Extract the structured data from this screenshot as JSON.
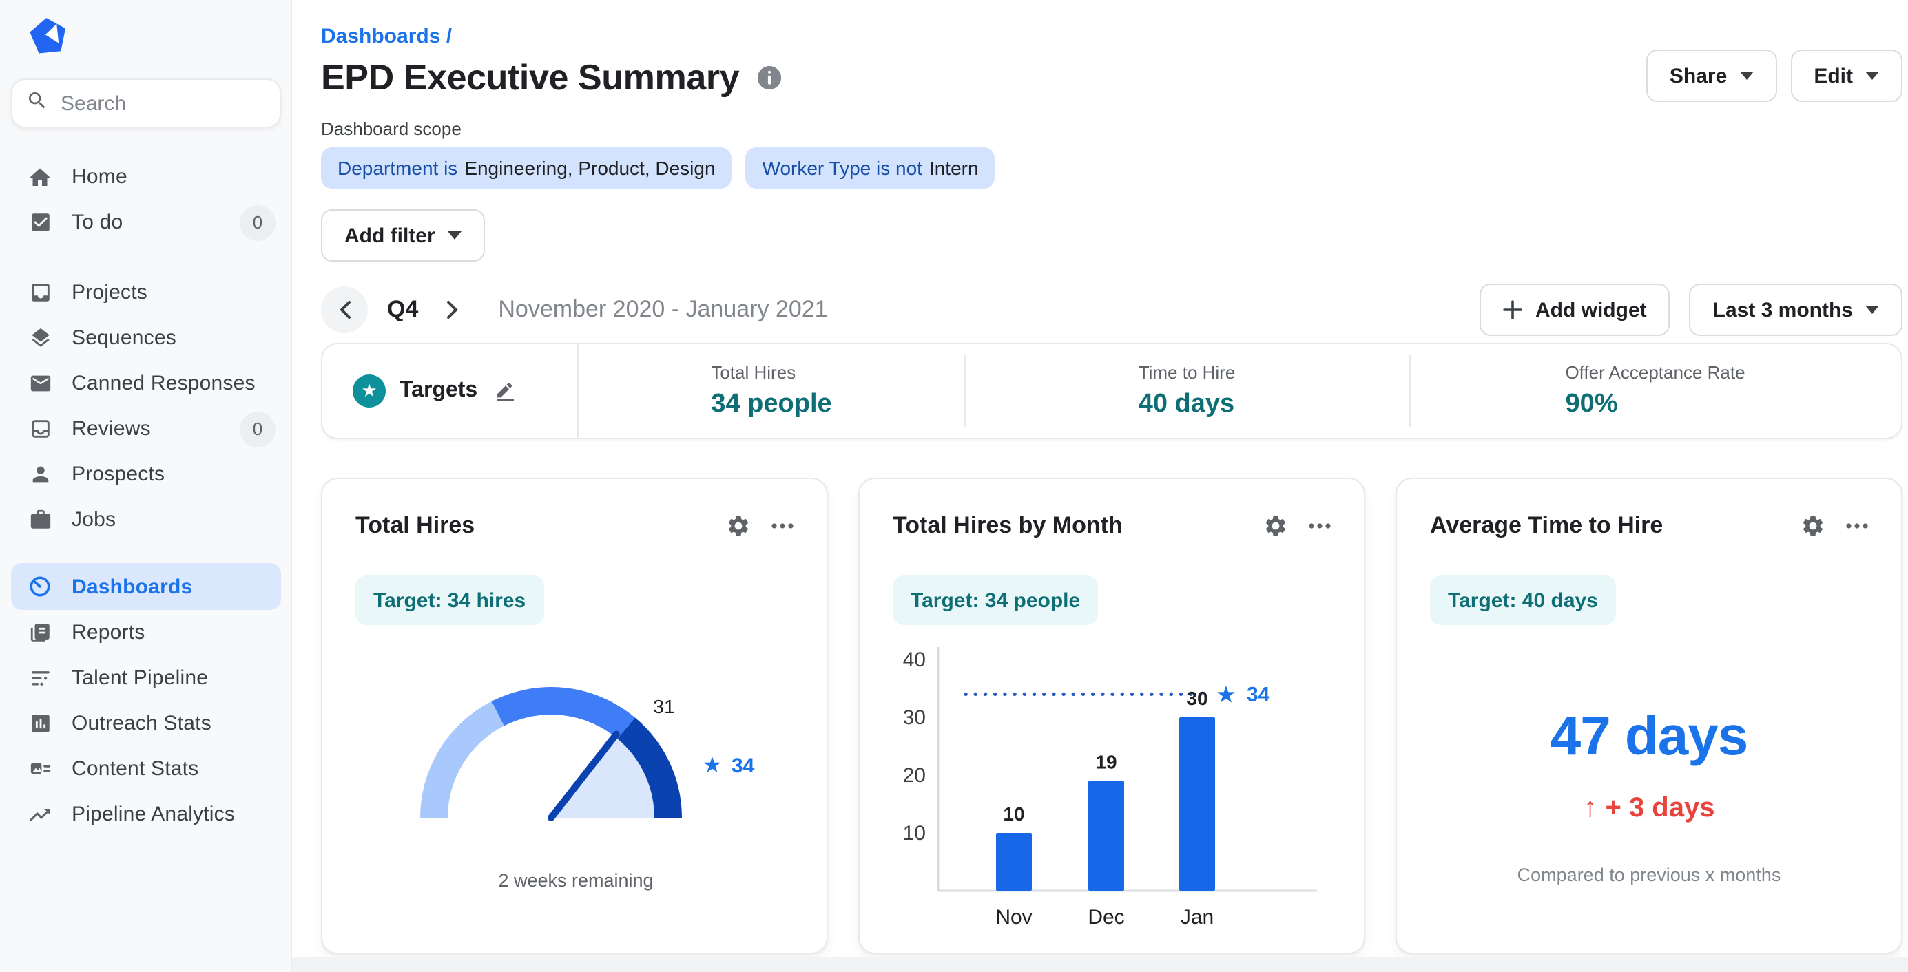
{
  "colors": {
    "brand_blue": "#2265f2",
    "accent_blue": "#1a73e8",
    "sidebar_active_bg": "#dbe7fc",
    "chip_blue_bg": "#d3e3fd",
    "chip_blue_field": "#174ea6",
    "teal": "#0e6e76",
    "teal_circle": "#0f919b",
    "teal_chip_bg": "#e9f7f8",
    "bar_blue": "#1767e8",
    "dotted_blue": "#2a5cc8",
    "gauge_light": "#a9c8fb",
    "gauge_mid": "#3e7df6",
    "gauge_dark": "#0a43b0",
    "gauge_fill": "#dae6fc",
    "red": "#e9433b",
    "text_dark": "#202124",
    "text_med": "#3c4043",
    "text_gray": "#5f6368",
    "text_light": "#80868b",
    "axis_gray": "#d9dce0"
  },
  "sidebar": {
    "search_placeholder": "Search",
    "primary": [
      {
        "icon": "home-icon",
        "label": "Home"
      },
      {
        "icon": "todo-icon",
        "label": "To do",
        "badge": "0"
      }
    ],
    "workspace": [
      {
        "icon": "projects-icon",
        "label": "Projects"
      },
      {
        "icon": "sequences-icon",
        "label": "Sequences"
      },
      {
        "icon": "canned-responses-icon",
        "label": "Canned Responses"
      },
      {
        "icon": "reviews-icon",
        "label": "Reviews",
        "badge": "0"
      },
      {
        "icon": "prospects-icon",
        "label": "Prospects"
      },
      {
        "icon": "jobs-icon",
        "label": "Jobs"
      }
    ],
    "analytics": [
      {
        "icon": "dashboards-icon",
        "label": "Dashboards",
        "active": true
      },
      {
        "icon": "reports-icon",
        "label": "Reports"
      },
      {
        "icon": "talent-pipeline-icon",
        "label": "Talent Pipeline"
      },
      {
        "icon": "outreach-stats-icon",
        "label": "Outreach Stats"
      },
      {
        "icon": "content-stats-icon",
        "label": "Content Stats"
      },
      {
        "icon": "pipeline-analytics-icon",
        "label": "Pipeline Analytics"
      }
    ]
  },
  "header": {
    "breadcrumb": "Dashboards /",
    "title": "EPD Executive Summary",
    "share_label": "Share",
    "edit_label": "Edit"
  },
  "scope": {
    "label": "Dashboard scope",
    "chips": [
      {
        "field": "Department is",
        "value": "Engineering, Product, Design"
      },
      {
        "field": "Worker Type is not",
        "value": "Intern"
      }
    ],
    "add_filter_label": "Add filter"
  },
  "period": {
    "quarter": "Q4",
    "range_label": "November 2020 - January 2021",
    "add_widget_label": "Add widget",
    "time_filter_label": "Last 3 months"
  },
  "targets_bar": {
    "title": "Targets",
    "stats": [
      {
        "label": "Total Hires",
        "value": "34 people"
      },
      {
        "label": "Time to Hire",
        "value": "40 days"
      },
      {
        "label": "Offer Acceptance Rate",
        "value": "90%"
      }
    ]
  },
  "widgets": {
    "total_hires": {
      "title": "Total Hires",
      "target_chip": "Target: 34 hires",
      "footnote": "2 weeks remaining"
    },
    "hires_by_month": {
      "title": "Total Hires by Month",
      "target_chip": "Target: 34 people"
    },
    "avg_time_to_hire": {
      "title": "Average Time to Hire",
      "target_chip": "Target: 40 days",
      "value": "47 days",
      "delta": "+ 3 days",
      "footnote": "Compared to previous x months"
    }
  },
  "chart_data": [
    {
      "type": "gauge",
      "widget": "Total Hires",
      "current": 31,
      "target": 34,
      "note": "2 weeks remaining",
      "segment_colors": [
        "#a9c8fb",
        "#3e7df6",
        "#0a43b0"
      ]
    },
    {
      "type": "bar",
      "widget": "Total Hires by Month",
      "categories": [
        "Nov",
        "Dec",
        "Jan"
      ],
      "values": [
        10,
        19,
        30
      ],
      "target_line": 34,
      "target_label": "34",
      "ylim": [
        0,
        40
      ],
      "yticks": [
        10,
        20,
        30,
        40
      ],
      "bar_color": "#1767e8",
      "grid": false,
      "legend": "none"
    },
    {
      "type": "single_value",
      "widget": "Average Time to Hire",
      "value": "47 days",
      "delta": "+ 3 days",
      "delta_direction": "up",
      "comparison": "Compared to previous x months",
      "target": 40
    }
  ]
}
